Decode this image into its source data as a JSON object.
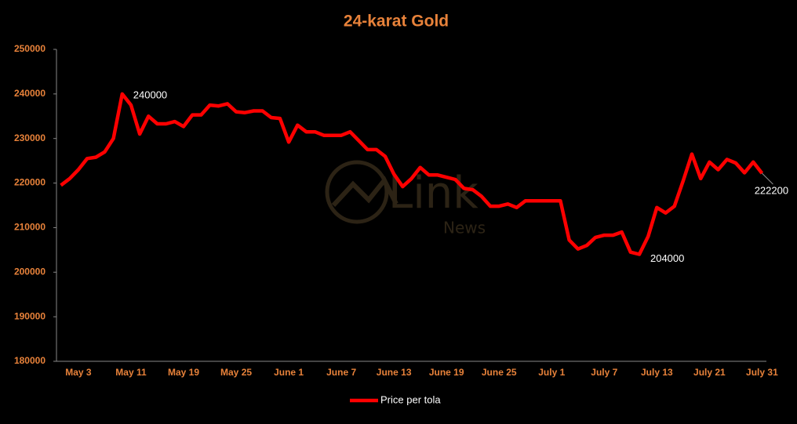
{
  "chart_data": {
    "type": "line",
    "title": "24-karat Gold",
    "categories": [
      null,
      null,
      "May 3",
      null,
      null,
      null,
      null,
      null,
      "May 11",
      null,
      null,
      null,
      null,
      null,
      "May 19",
      null,
      null,
      null,
      null,
      null,
      "May 25",
      null,
      null,
      null,
      null,
      null,
      "June 1",
      null,
      null,
      null,
      null,
      null,
      "June 7",
      null,
      null,
      null,
      null,
      null,
      "June 13",
      null,
      null,
      null,
      null,
      null,
      "June 19",
      null,
      null,
      null,
      null,
      null,
      "June 25",
      null,
      null,
      null,
      null,
      null,
      "July 1",
      null,
      null,
      null,
      null,
      null,
      "July 7",
      null,
      null,
      null,
      null,
      null,
      "July 13",
      null,
      null,
      null,
      null,
      null,
      "July 21",
      null,
      null,
      null,
      null,
      null,
      "July 31"
    ],
    "series": [
      {
        "name": "Price per tola",
        "color": "#ff0000",
        "values": [
          219500,
          221000,
          223000,
          225500,
          225800,
          227000,
          230000,
          240000,
          237500,
          231000,
          235000,
          233300,
          233300,
          233800,
          232700,
          235300,
          235300,
          237500,
          237300,
          237800,
          236000,
          235800,
          236200,
          236200,
          234700,
          234500,
          229200,
          233000,
          231500,
          231500,
          230700,
          230700,
          230700,
          231500,
          229500,
          227500,
          227500,
          226000,
          222000,
          219200,
          221000,
          223500,
          221800,
          221800,
          221300,
          220800,
          218800,
          218500,
          217000,
          214800,
          214800,
          215300,
          214500,
          216000,
          216000,
          216000,
          216000,
          216000,
          207200,
          205200,
          206000,
          207800,
          208300,
          208300,
          209000,
          204500,
          204000,
          208000,
          214500,
          213300,
          214800,
          220500,
          226500,
          221000,
          224700,
          223000,
          225300,
          224500,
          222300,
          224700,
          222200
        ]
      }
    ],
    "ylim": [
      180000,
      250000
    ],
    "yticks": [
      180000,
      190000,
      200000,
      210000,
      220000,
      230000,
      240000,
      250000
    ],
    "grid": false,
    "legend": "bottom"
  }
}
